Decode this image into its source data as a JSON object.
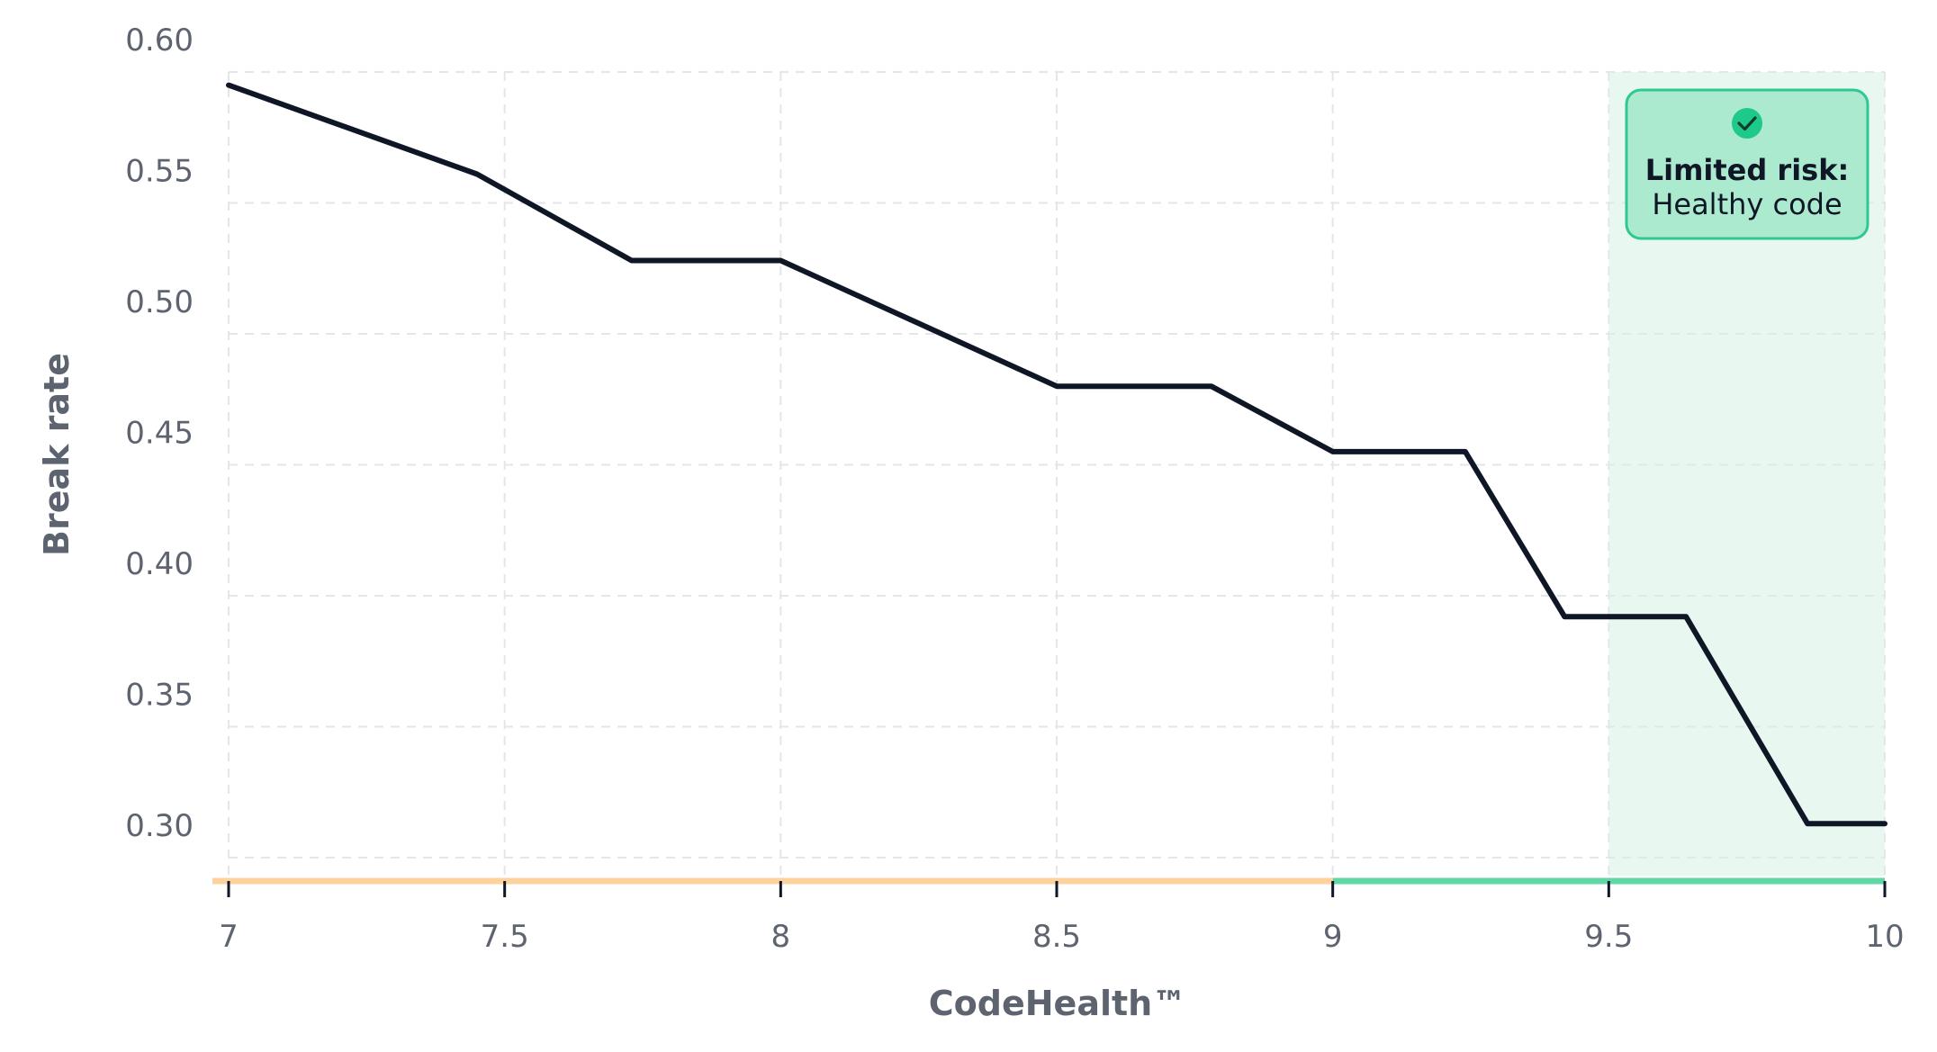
{
  "chart_data": {
    "type": "line",
    "title": "",
    "xlabel": "CodeHealth™",
    "ylabel": "Break rate",
    "xlim": [
      7,
      10
    ],
    "ylim": [
      0.3,
      0.6
    ],
    "x_ticks": [
      7,
      7.5,
      8,
      8.5,
      9,
      9.5,
      10
    ],
    "x_tick_labels": [
      "7",
      "7.5",
      "8",
      "8.5",
      "9",
      "9.5",
      "10"
    ],
    "y_ticks": [
      0.3,
      0.35,
      0.4,
      0.45,
      0.5,
      0.55,
      0.6
    ],
    "y_tick_labels": [
      "0.30",
      "0.35",
      "0.40",
      "0.45",
      "0.50",
      "0.55",
      "0.60"
    ],
    "grid": true,
    "series": [
      {
        "x": [
          7.0,
          7.45,
          7.73,
          8.0,
          8.5,
          8.78,
          9.0,
          9.24,
          9.42,
          9.64,
          9.86,
          10.0
        ],
        "y": [
          0.595,
          0.561,
          0.528,
          0.528,
          0.48,
          0.48,
          0.455,
          0.455,
          0.392,
          0.392,
          0.313,
          0.313
        ],
        "color": "#0f1626"
      }
    ],
    "bands": [
      {
        "x_from": 7,
        "x_to": 9,
        "color": "#fdd29d"
      },
      {
        "x_from": 9,
        "x_to": 10,
        "color": "#63d6a6"
      }
    ],
    "shaded_region": {
      "x_from": 9.5,
      "x_to": 10,
      "color": "#e8f8f1"
    },
    "annotation": {
      "title": "Limited risk:",
      "subtitle": "Healthy code",
      "icon": "check-circle-icon",
      "background": "#abeace",
      "border": "#2ec990",
      "icon_color": "#1ec98a"
    }
  }
}
